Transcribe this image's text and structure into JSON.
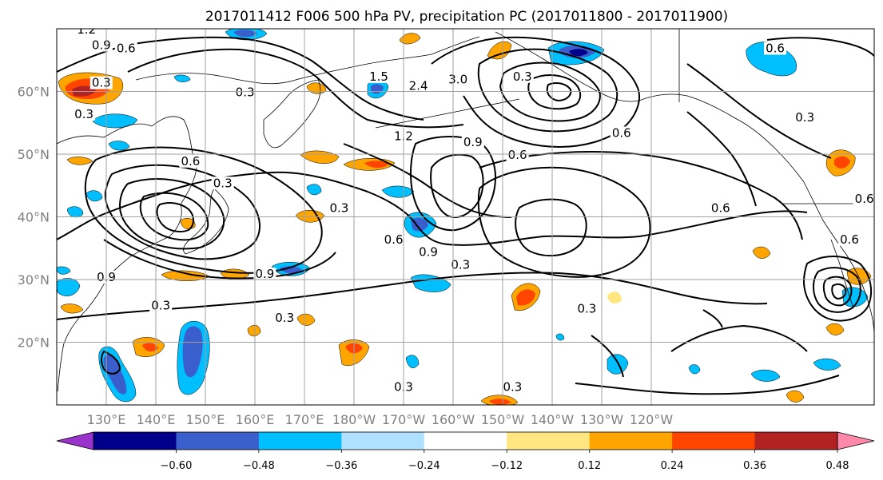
{
  "title": "2017011412 F006 500 hPa PV, precipitation PC (2017011800 - 2017011900)",
  "map": {
    "lon_min": 120,
    "lon_max": 285,
    "lat_min": 10,
    "lat_max": 70,
    "lat_ticks": [
      {
        "lat": 20,
        "label": "20°N"
      },
      {
        "lat": 30,
        "label": "30°N"
      },
      {
        "lat": 40,
        "label": "40°N"
      },
      {
        "lat": 50,
        "label": "50°N"
      },
      {
        "lat": 60,
        "label": "60°N"
      }
    ],
    "lon_ticks": [
      {
        "lon": 130,
        "label": "130°E"
      },
      {
        "lon": 140,
        "label": "140°E"
      },
      {
        "lon": 150,
        "label": "150°E"
      },
      {
        "lon": 160,
        "label": "160°E"
      },
      {
        "lon": 170,
        "label": "170°E"
      },
      {
        "lon": 180,
        "label": "180°W"
      },
      {
        "lon": 190,
        "label": "170°W"
      },
      {
        "lon": 200,
        "label": "160°W"
      },
      {
        "lon": 210,
        "label": "150°W"
      },
      {
        "lon": 220,
        "label": "140°W"
      },
      {
        "lon": 230,
        "label": "130°W"
      },
      {
        "lon": 240,
        "label": "120°W"
      }
    ]
  },
  "colorbar": {
    "ticks": [
      "−0.60",
      "−0.48",
      "−0.36",
      "−0.24",
      "−0.12",
      "0.12",
      "0.24",
      "0.36",
      "0.48",
      "0.60"
    ],
    "colors": [
      "#9933cc",
      "#00008b",
      "#3a5fcd",
      "#00bfff",
      "#b0e0ff",
      "#ffffff",
      "#ffe680",
      "#ffa500",
      "#ff4500",
      "#b22222",
      "#ff88aa"
    ]
  },
  "contour_labels": [
    {
      "text": "1.2",
      "lon": 126,
      "lat": 69.5
    },
    {
      "text": "0.9",
      "lon": 129,
      "lat": 67
    },
    {
      "text": "0.6",
      "lon": 134,
      "lat": 66.5
    },
    {
      "text": "0.3",
      "lon": 129,
      "lat": 61
    },
    {
      "text": "0.3",
      "lon": 125.5,
      "lat": 56
    },
    {
      "text": "0.3",
      "lon": 158,
      "lat": 59.5
    },
    {
      "text": "1.5",
      "lon": 185,
      "lat": 62
    },
    {
      "text": "2.4",
      "lon": 193,
      "lat": 60.5
    },
    {
      "text": "3.0",
      "lon": 201,
      "lat": 61.5
    },
    {
      "text": "0.3",
      "lon": 214,
      "lat": 62
    },
    {
      "text": "0.6",
      "lon": 265,
      "lat": 66.5
    },
    {
      "text": "0.3",
      "lon": 271,
      "lat": 55.5
    },
    {
      "text": "1.2",
      "lon": 190,
      "lat": 52.5
    },
    {
      "text": "0.9",
      "lon": 204,
      "lat": 51.5
    },
    {
      "text": "0.6",
      "lon": 213,
      "lat": 49.5
    },
    {
      "text": "0.6",
      "lon": 234,
      "lat": 53
    },
    {
      "text": "0.6",
      "lon": 254,
      "lat": 41
    },
    {
      "text": "0.6",
      "lon": 283,
      "lat": 42.5
    },
    {
      "text": "0.6",
      "lon": 280,
      "lat": 36
    },
    {
      "text": "0.3",
      "lon": 153.5,
      "lat": 45
    },
    {
      "text": "0.6",
      "lon": 147,
      "lat": 48.5
    },
    {
      "text": "0.3",
      "lon": 177,
      "lat": 41
    },
    {
      "text": "0.6",
      "lon": 188,
      "lat": 36
    },
    {
      "text": "0.9",
      "lon": 195,
      "lat": 34
    },
    {
      "text": "0.3",
      "lon": 201.5,
      "lat": 32
    },
    {
      "text": "0.9",
      "lon": 162,
      "lat": 30.5
    },
    {
      "text": "0.3",
      "lon": 141,
      "lat": 25.5
    },
    {
      "text": "0.3",
      "lon": 166,
      "lat": 23.5
    },
    {
      "text": "0.3",
      "lon": 227,
      "lat": 25
    },
    {
      "text": "0.3",
      "lon": 190,
      "lat": 12.5
    },
    {
      "text": "0.3",
      "lon": 212,
      "lat": 12.5
    },
    {
      "text": "0.9",
      "lon": 130,
      "lat": 30
    }
  ]
}
